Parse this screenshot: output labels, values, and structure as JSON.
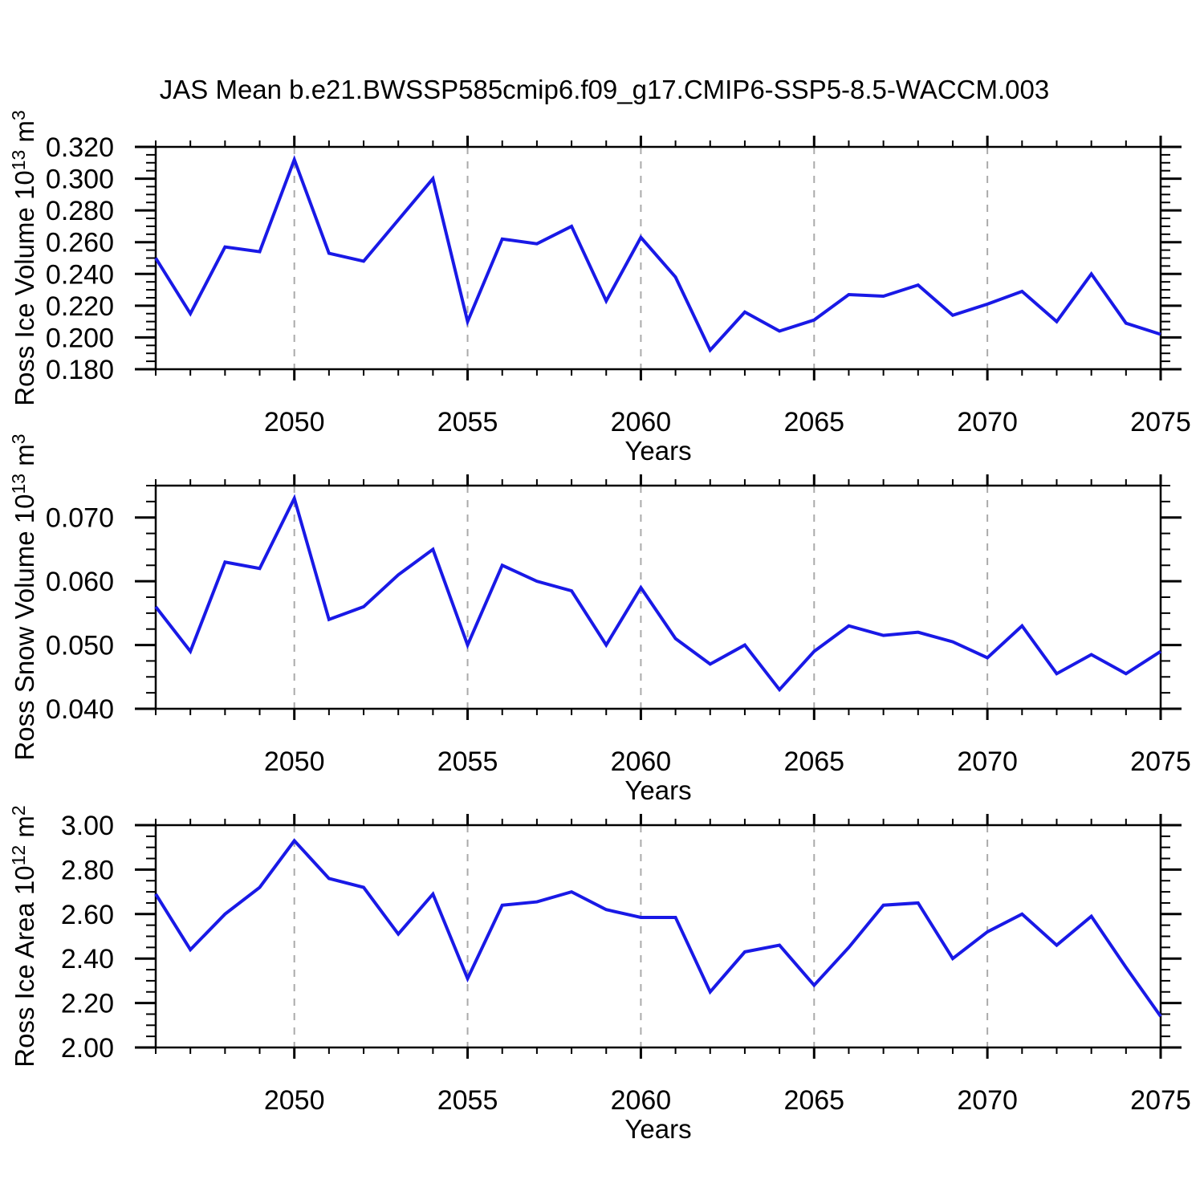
{
  "title": "JAS Mean b.e21.BWSSP585cmip6.f09_g17.CMIP6-SSP5-8.5-WACCM.003",
  "chart_data": {
    "type": "line",
    "x_label": "Years",
    "x": [
      2046,
      2047,
      2048,
      2049,
      2050,
      2051,
      2052,
      2053,
      2054,
      2055,
      2056,
      2057,
      2058,
      2059,
      2060,
      2061,
      2062,
      2063,
      2064,
      2065,
      2066,
      2067,
      2068,
      2069,
      2070,
      2071,
      2072,
      2073,
      2074,
      2075
    ],
    "x_ticks": {
      "values": [
        2050,
        2055,
        2060,
        2065,
        2070,
        2075
      ],
      "labels": [
        "2050",
        "2055",
        "2060",
        "2065",
        "2070",
        "2075"
      ]
    },
    "grid_years": [
      2050,
      2055,
      2060,
      2065,
      2070
    ],
    "line_color": "#1919e6",
    "grid_color": "#aaaaaa",
    "axis_color": "#000000",
    "panels": [
      {
        "name": "ross-ice-volume",
        "y_label_text": "Ross Ice Volume 10¹³ m³",
        "y_label_parts": [
          {
            "t": "Ross Ice Volume 10"
          },
          {
            "t": "13",
            "sup": true
          },
          {
            "t": " m"
          },
          {
            "t": "3",
            "sup": true
          }
        ],
        "ylim": [
          0.18,
          0.32
        ],
        "y_major": {
          "values": [
            0.18,
            0.2,
            0.22,
            0.24,
            0.26,
            0.28,
            0.3,
            0.32
          ],
          "labels": [
            "0.180",
            "0.200",
            "0.220",
            "0.240",
            "0.260",
            "0.280",
            "0.300",
            "0.320"
          ]
        },
        "y_minor_step": 0.005,
        "values": [
          0.25,
          0.215,
          0.257,
          0.254,
          0.312,
          0.253,
          0.248,
          0.274,
          0.3,
          0.21,
          0.262,
          0.259,
          0.27,
          0.223,
          0.263,
          0.238,
          0.192,
          0.216,
          0.204,
          0.211,
          0.227,
          0.226,
          0.233,
          0.214,
          0.221,
          0.229,
          0.21,
          0.24,
          0.209,
          0.202
        ]
      },
      {
        "name": "ross-snow-volume",
        "y_label_text": "Ross Snow Volume 10¹³ m³",
        "y_label_parts": [
          {
            "t": "Ross Snow Volume 10"
          },
          {
            "t": "13",
            "sup": true
          },
          {
            "t": " m"
          },
          {
            "t": "3",
            "sup": true
          }
        ],
        "ylim": [
          0.04,
          0.075
        ],
        "y_major": {
          "values": [
            0.04,
            0.05,
            0.06,
            0.07
          ],
          "labels": [
            "0.040",
            "0.050",
            "0.060",
            "0.070"
          ]
        },
        "y_minor_step": 0.0025,
        "values": [
          0.056,
          0.049,
          0.063,
          0.062,
          0.073,
          0.054,
          0.056,
          0.061,
          0.065,
          0.05,
          0.0625,
          0.06,
          0.0585,
          0.05,
          0.059,
          0.051,
          0.047,
          0.05,
          0.043,
          0.049,
          0.053,
          0.0515,
          0.052,
          0.0505,
          0.048,
          0.053,
          0.0455,
          0.0485,
          0.0455,
          0.049
        ]
      },
      {
        "name": "ross-ice-area",
        "y_label_text": "Ross Ice Area 10¹² m²",
        "y_label_parts": [
          {
            "t": "Ross Ice Area 10"
          },
          {
            "t": "12",
            "sup": true
          },
          {
            "t": " m"
          },
          {
            "t": "2",
            "sup": true
          }
        ],
        "ylim": [
          2.0,
          3.0
        ],
        "y_major": {
          "values": [
            2.0,
            2.2,
            2.4,
            2.6,
            2.8,
            3.0
          ],
          "labels": [
            "2.00",
            "2.20",
            "2.40",
            "2.60",
            "2.80",
            "3.00"
          ]
        },
        "y_minor_step": 0.05,
        "values": [
          2.69,
          2.44,
          2.6,
          2.72,
          2.93,
          2.76,
          2.72,
          2.51,
          2.69,
          2.31,
          2.64,
          2.655,
          2.7,
          2.62,
          2.585,
          2.585,
          2.25,
          2.43,
          2.46,
          2.28,
          2.45,
          2.64,
          2.65,
          2.4,
          2.52,
          2.6,
          2.46,
          2.59,
          2.36,
          2.14
        ]
      }
    ]
  }
}
